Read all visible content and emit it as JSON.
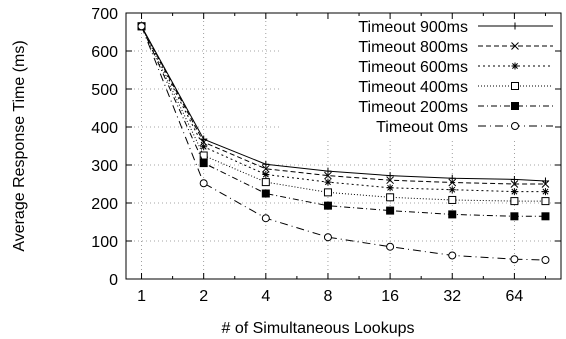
{
  "chart_data": {
    "type": "line",
    "title": "",
    "xlabel": "# of Simultaneous Lookups",
    "ylabel": "Average Response Time (ms)",
    "x_tick_labels": [
      "1",
      "2",
      "4",
      "8",
      "16",
      "32",
      "64"
    ],
    "x": [
      1,
      2,
      3,
      4,
      5,
      6,
      7,
      8,
      9,
      10,
      11,
      12,
      13,
      14
    ],
    "xlim": [
      0.5,
      14.5
    ],
    "y_ticks": [
      "0",
      "100",
      "200",
      "300",
      "400",
      "500",
      "600",
      "700"
    ],
    "ylim": [
      0,
      700
    ],
    "grid": true,
    "legend": "top-right",
    "series": [
      {
        "name": "Timeout 900ms",
        "marker": "plus",
        "dash": "solid",
        "points": [
          [
            1,
            665
          ],
          [
            3,
            368
          ],
          [
            5,
            302
          ],
          [
            7,
            284
          ],
          [
            9,
            272
          ],
          [
            11,
            265
          ],
          [
            13,
            262
          ],
          [
            14,
            258
          ]
        ]
      },
      {
        "name": "Timeout 800ms",
        "marker": "x",
        "dash": "dash",
        "points": [
          [
            1,
            665
          ],
          [
            3,
            360
          ],
          [
            5,
            290
          ],
          [
            7,
            272
          ],
          [
            9,
            260
          ],
          [
            11,
            254
          ],
          [
            13,
            250
          ],
          [
            14,
            250
          ]
        ]
      },
      {
        "name": "Timeout 600ms",
        "marker": "star",
        "dash": "dot",
        "points": [
          [
            1,
            665
          ],
          [
            3,
            348
          ],
          [
            5,
            275
          ],
          [
            7,
            255
          ],
          [
            9,
            240
          ],
          [
            11,
            235
          ],
          [
            13,
            230
          ],
          [
            14,
            230
          ]
        ]
      },
      {
        "name": "Timeout 400ms",
        "marker": "open-square",
        "dash": "finedot",
        "points": [
          [
            1,
            665
          ],
          [
            3,
            325
          ],
          [
            5,
            255
          ],
          [
            7,
            228
          ],
          [
            9,
            215
          ],
          [
            11,
            208
          ],
          [
            13,
            205
          ],
          [
            14,
            205
          ]
        ]
      },
      {
        "name": "Timeout 200ms",
        "marker": "filled-square",
        "dash": "dashdot",
        "points": [
          [
            1,
            665
          ],
          [
            3,
            305
          ],
          [
            5,
            225
          ],
          [
            7,
            193
          ],
          [
            9,
            180
          ],
          [
            11,
            170
          ],
          [
            13,
            165
          ],
          [
            14,
            165
          ]
        ]
      },
      {
        "name": "Timeout 0ms",
        "marker": "open-circle",
        "dash": "longdashdot",
        "points": [
          [
            1,
            665
          ],
          [
            3,
            252
          ],
          [
            5,
            160
          ],
          [
            7,
            110
          ],
          [
            9,
            85
          ],
          [
            11,
            62
          ],
          [
            13,
            52
          ],
          [
            14,
            50
          ]
        ]
      }
    ]
  }
}
